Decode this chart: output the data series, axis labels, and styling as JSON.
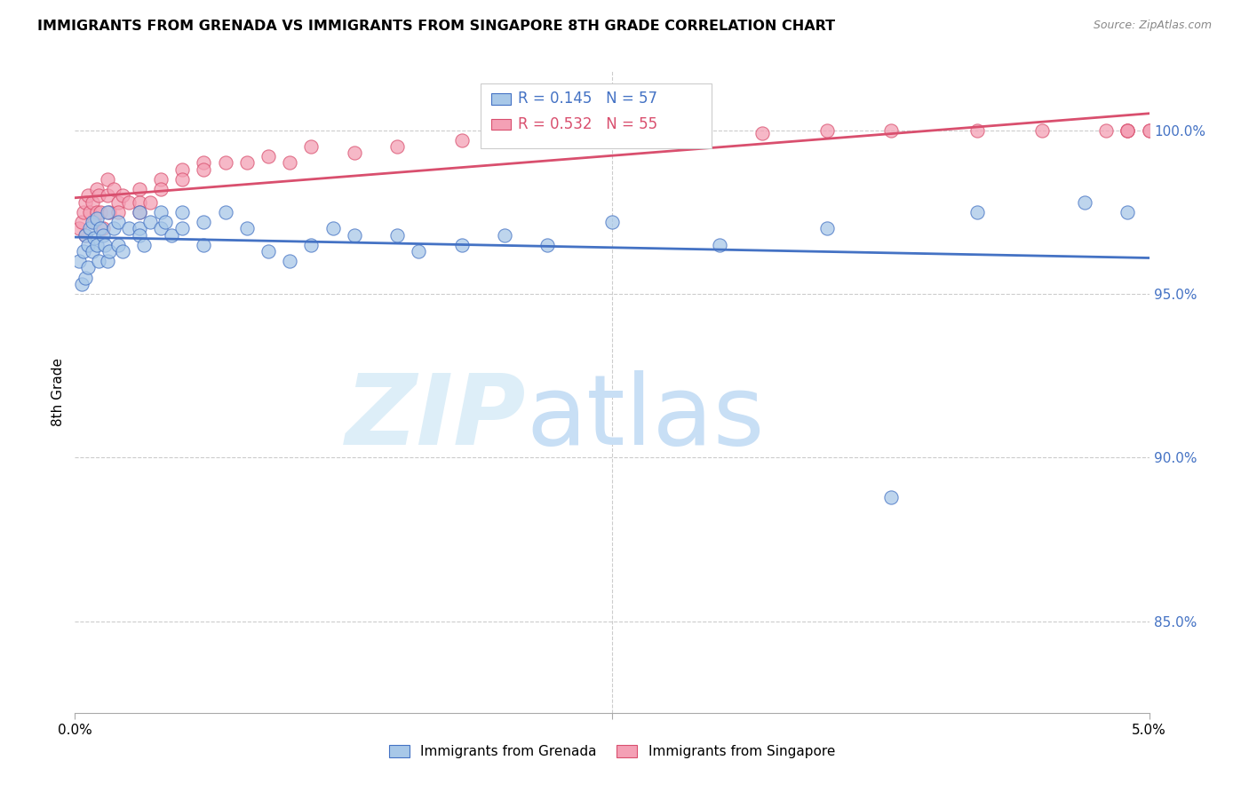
{
  "title": "IMMIGRANTS FROM GRENADA VS IMMIGRANTS FROM SINGAPORE 8TH GRADE CORRELATION CHART",
  "source": "Source: ZipAtlas.com",
  "ylabel": "8th Grade",
  "ytick_labels": [
    "85.0%",
    "90.0%",
    "95.0%",
    "100.0%"
  ],
  "ytick_values": [
    0.85,
    0.9,
    0.95,
    1.0
  ],
  "xmin": 0.0,
  "xmax": 0.05,
  "ymin": 0.822,
  "ymax": 1.018,
  "legend_grenada": "Immigrants from Grenada",
  "legend_singapore": "Immigrants from Singapore",
  "r_grenada": "0.145",
  "n_grenada": "57",
  "r_singapore": "0.532",
  "n_singapore": "55",
  "color_grenada": "#a8c8e8",
  "color_singapore": "#f4a0b5",
  "line_color_grenada": "#4472c4",
  "line_color_singapore": "#d94f6e",
  "grenada_x": [
    0.0002,
    0.0003,
    0.0004,
    0.0005,
    0.0005,
    0.0006,
    0.0006,
    0.0007,
    0.0008,
    0.0008,
    0.0009,
    0.001,
    0.001,
    0.0011,
    0.0012,
    0.0013,
    0.0014,
    0.0015,
    0.0015,
    0.0016,
    0.0018,
    0.002,
    0.002,
    0.0022,
    0.0025,
    0.003,
    0.003,
    0.003,
    0.0032,
    0.0035,
    0.004,
    0.004,
    0.0042,
    0.0045,
    0.005,
    0.005,
    0.006,
    0.006,
    0.007,
    0.008,
    0.009,
    0.01,
    0.011,
    0.012,
    0.013,
    0.015,
    0.016,
    0.018,
    0.02,
    0.022,
    0.025,
    0.03,
    0.035,
    0.038,
    0.042,
    0.047,
    0.049
  ],
  "grenada_y": [
    0.96,
    0.953,
    0.963,
    0.968,
    0.955,
    0.965,
    0.958,
    0.97,
    0.963,
    0.972,
    0.967,
    0.973,
    0.965,
    0.96,
    0.97,
    0.968,
    0.965,
    0.975,
    0.96,
    0.963,
    0.97,
    0.972,
    0.965,
    0.963,
    0.97,
    0.975,
    0.97,
    0.968,
    0.965,
    0.972,
    0.975,
    0.97,
    0.972,
    0.968,
    0.975,
    0.97,
    0.972,
    0.965,
    0.975,
    0.97,
    0.963,
    0.96,
    0.965,
    0.97,
    0.968,
    0.968,
    0.963,
    0.965,
    0.968,
    0.965,
    0.972,
    0.965,
    0.97,
    0.888,
    0.975,
    0.978,
    0.975
  ],
  "singapore_x": [
    0.0002,
    0.0003,
    0.0004,
    0.0005,
    0.0005,
    0.0006,
    0.0007,
    0.0008,
    0.0009,
    0.001,
    0.001,
    0.0011,
    0.0012,
    0.0013,
    0.0015,
    0.0015,
    0.0016,
    0.0018,
    0.002,
    0.002,
    0.0022,
    0.0025,
    0.003,
    0.003,
    0.003,
    0.0035,
    0.004,
    0.004,
    0.005,
    0.005,
    0.006,
    0.006,
    0.007,
    0.008,
    0.009,
    0.01,
    0.011,
    0.013,
    0.015,
    0.018,
    0.02,
    0.022,
    0.025,
    0.028,
    0.032,
    0.035,
    0.038,
    0.042,
    0.045,
    0.048,
    0.049,
    0.049,
    0.049,
    0.05,
    0.05
  ],
  "singapore_y": [
    0.97,
    0.972,
    0.975,
    0.978,
    0.968,
    0.98,
    0.975,
    0.978,
    0.972,
    0.982,
    0.975,
    0.98,
    0.975,
    0.97,
    0.985,
    0.98,
    0.975,
    0.982,
    0.978,
    0.975,
    0.98,
    0.978,
    0.982,
    0.978,
    0.975,
    0.978,
    0.985,
    0.982,
    0.988,
    0.985,
    0.99,
    0.988,
    0.99,
    0.99,
    0.992,
    0.99,
    0.995,
    0.993,
    0.995,
    0.997,
    0.998,
    0.997,
    0.998,
    0.998,
    0.999,
    1.0,
    1.0,
    1.0,
    1.0,
    1.0,
    1.0,
    1.0,
    1.0,
    1.0,
    1.0
  ]
}
